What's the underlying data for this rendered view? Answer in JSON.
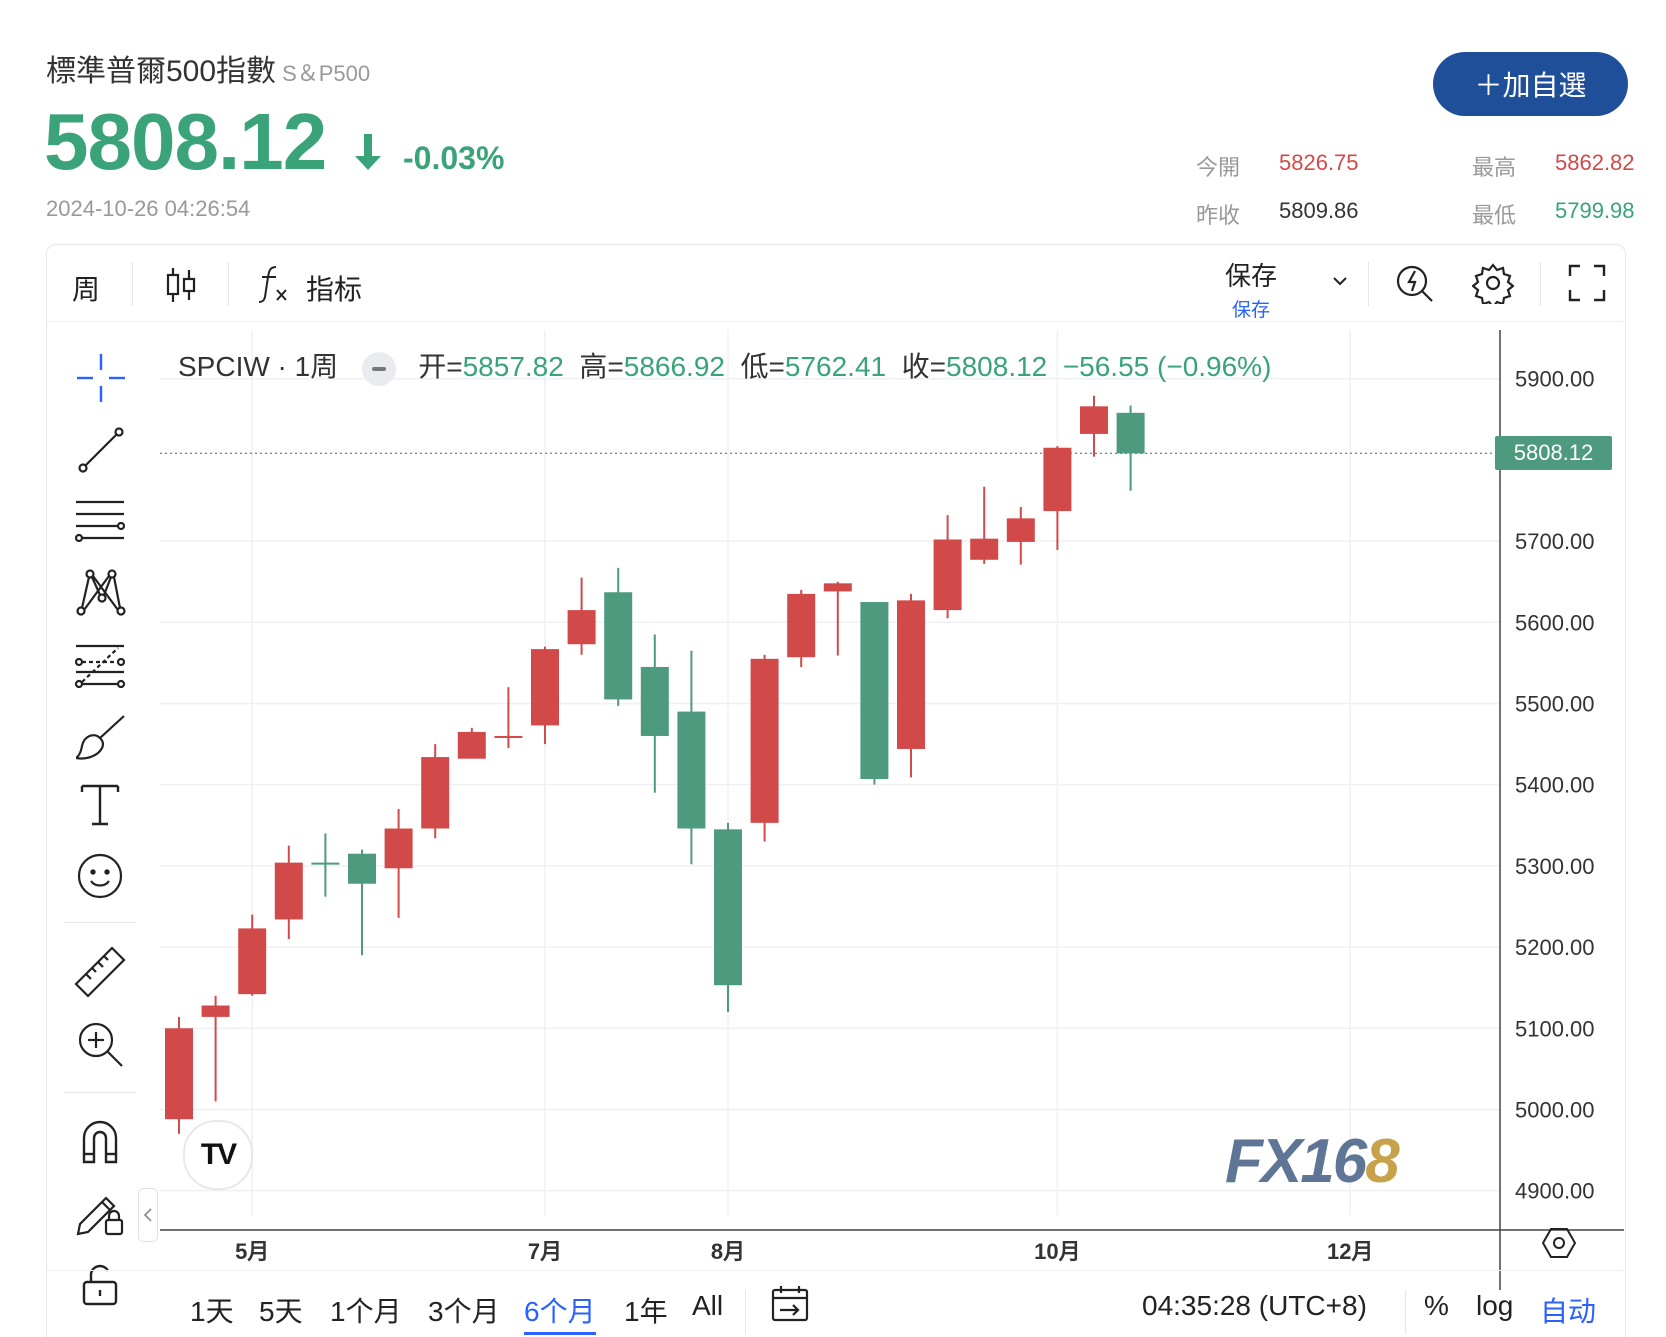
{
  "header": {
    "title": "標準普爾500指數",
    "symbol": "S＆P500",
    "price": "5808.12",
    "change_pct": "-0.03%",
    "timestamp": "2024-10-26 04:26:54",
    "add_button": "＋加自選"
  },
  "stats": {
    "open_label": "今開",
    "open_value": "5826.75",
    "high_label": "最高",
    "high_value": "5862.82",
    "prev_close_label": "昨收",
    "prev_close_value": "5809.86",
    "low_label": "最低",
    "low_value": "5799.98"
  },
  "toolbar": {
    "interval": "周",
    "indicators": "指标",
    "save_main": "保存",
    "save_sub": "保存"
  },
  "legend": {
    "symbol": "SPCIW · 1周",
    "open_label": "开=",
    "open": "5857.82",
    "high_label": "高=",
    "high": "5866.92",
    "low_label": "低=",
    "low": "5762.41",
    "close_label": "收=",
    "close": "5808.12",
    "change": "−56.55 (−0.96%)"
  },
  "chart_data": {
    "type": "candlestick",
    "current_price_label": "5808.12",
    "current_price": 5808.12,
    "y_ticks": [
      "5900.00",
      "5700.00",
      "5600.00",
      "5500.00",
      "5400.00",
      "5300.00",
      "5200.00",
      "5100.00",
      "5000.00",
      "4900.00"
    ],
    "y_tick_values": [
      5900,
      5700,
      5600,
      5500,
      5400,
      5300,
      5200,
      5100,
      5000,
      4900
    ],
    "ylim": [
      4870,
      5960
    ],
    "x_labels": [
      "5月",
      "7月",
      "8月",
      "10月",
      "12月"
    ],
    "x_label_index": [
      2,
      10,
      15,
      24,
      32
    ],
    "candles": [
      {
        "o": 4988,
        "h": 5114,
        "l": 4970,
        "c": 5100
      },
      {
        "o": 5114,
        "h": 5140,
        "l": 5010,
        "c": 5128
      },
      {
        "o": 5142,
        "h": 5240,
        "l": 5140,
        "c": 5223
      },
      {
        "o": 5234,
        "h": 5325,
        "l": 5210,
        "c": 5304
      },
      {
        "o": 5304,
        "h": 5340,
        "l": 5262,
        "c": 5302
      },
      {
        "o": 5315,
        "h": 5320,
        "l": 5190,
        "c": 5278
      },
      {
        "o": 5297,
        "h": 5370,
        "l": 5236,
        "c": 5346
      },
      {
        "o": 5346,
        "h": 5450,
        "l": 5334,
        "c": 5434
      },
      {
        "o": 5432,
        "h": 5470,
        "l": 5434,
        "c": 5465
      },
      {
        "o": 5459,
        "h": 5520,
        "l": 5445,
        "c": 5460
      },
      {
        "o": 5473,
        "h": 5570,
        "l": 5450,
        "c": 5567
      },
      {
        "o": 5573,
        "h": 5655,
        "l": 5560,
        "c": 5615
      },
      {
        "o": 5637,
        "h": 5667,
        "l": 5497,
        "c": 5505
      },
      {
        "o": 5545,
        "h": 5585,
        "l": 5390,
        "c": 5460
      },
      {
        "o": 5490,
        "h": 5565,
        "l": 5302,
        "c": 5346
      },
      {
        "o": 5345,
        "h": 5353,
        "l": 5120,
        "c": 5153
      },
      {
        "o": 5353,
        "h": 5560,
        "l": 5330,
        "c": 5555
      },
      {
        "o": 5557,
        "h": 5640,
        "l": 5545,
        "c": 5635
      },
      {
        "o": 5638,
        "h": 5650,
        "l": 5559,
        "c": 5648
      },
      {
        "o": 5625,
        "h": 5625,
        "l": 5400,
        "c": 5407
      },
      {
        "o": 5444,
        "h": 5635,
        "l": 5409,
        "c": 5627
      },
      {
        "o": 5615,
        "h": 5732,
        "l": 5605,
        "c": 5702
      },
      {
        "o": 5677,
        "h": 5767,
        "l": 5672,
        "c": 5703
      },
      {
        "o": 5699,
        "h": 5742,
        "l": 5671,
        "c": 5728
      },
      {
        "o": 5737,
        "h": 5817,
        "l": 5689,
        "c": 5815
      },
      {
        "o": 5832,
        "h": 5879,
        "l": 5804,
        "c": 5866
      },
      {
        "o": 5858,
        "h": 5867,
        "l": 5762,
        "c": 5808
      }
    ]
  },
  "colors": {
    "up": "#d14a49",
    "down": "#4d9a7e",
    "accent": "#2962ff",
    "brand": "#1f4f99"
  },
  "watermark": {
    "part1": "FX16",
    "part2": "8"
  },
  "ranges": [
    "1天",
    "5天",
    "1个月",
    "3个月",
    "6个月",
    "1年",
    "All"
  ],
  "active_range": "6个月",
  "footer": {
    "time": "04:35:28 (UTC+8)",
    "pct": "%",
    "log": "log",
    "auto": "自动"
  }
}
